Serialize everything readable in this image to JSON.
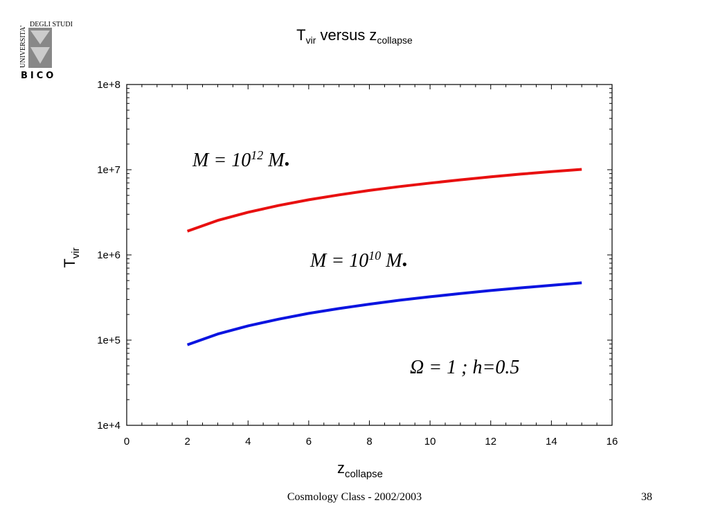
{
  "slide": {
    "title_main": "T",
    "title_sub": "vir",
    "title_mid": " versus z",
    "title_sub2": "collapse",
    "footer": "Cosmology Class - 2002/2003",
    "page_number": "38"
  },
  "logo": {
    "text_top": "DEGLI STUDI",
    "text_side": "UNIVERSITA'",
    "text_bottom": "BICO"
  },
  "chart_data": {
    "type": "line",
    "title": "T_vir versus z_collapse",
    "xlabel_main": "z",
    "xlabel_sub": "collapse",
    "ylabel_main": "T",
    "ylabel_sub": "vir",
    "xlim": [
      0,
      16
    ],
    "ylim": [
      10000,
      100000000
    ],
    "yscale": "log",
    "x_ticks": [
      "0",
      "2",
      "4",
      "6",
      "8",
      "10",
      "12",
      "14",
      "16"
    ],
    "y_ticks": [
      "1e+4",
      "1e+5",
      "1e+6",
      "1e+7",
      "1e+8"
    ],
    "series": [
      {
        "color": "#e81010",
        "x": [
          2,
          3,
          4,
          5,
          6,
          7,
          8,
          9,
          10,
          11,
          12,
          13,
          14,
          15
        ],
        "y": [
          1900000,
          2540000,
          3170000,
          3800000,
          4440000,
          5070000,
          5710000,
          6340000,
          6970000,
          7610000,
          8240000,
          8880000,
          9510000,
          10100000
        ]
      },
      {
        "color": "#0a14e0",
        "x": [
          2,
          3,
          4,
          5,
          6,
          7,
          8,
          9,
          10,
          11,
          12,
          13,
          14,
          15
        ],
        "y": [
          88000,
          118000,
          147000,
          176000,
          206000,
          235000,
          264000,
          294000,
          323000,
          352000,
          382000,
          411000,
          440000,
          470000
        ]
      }
    ],
    "annotations": [
      {
        "lhs": "M = 10",
        "exp": "12",
        "rhs": " M",
        "dot": "•"
      },
      {
        "lhs": "M = 10",
        "exp": "10",
        "rhs": " M",
        "dot": "•"
      },
      {
        "text": "Ω = 1 ; h=0.5"
      }
    ]
  }
}
